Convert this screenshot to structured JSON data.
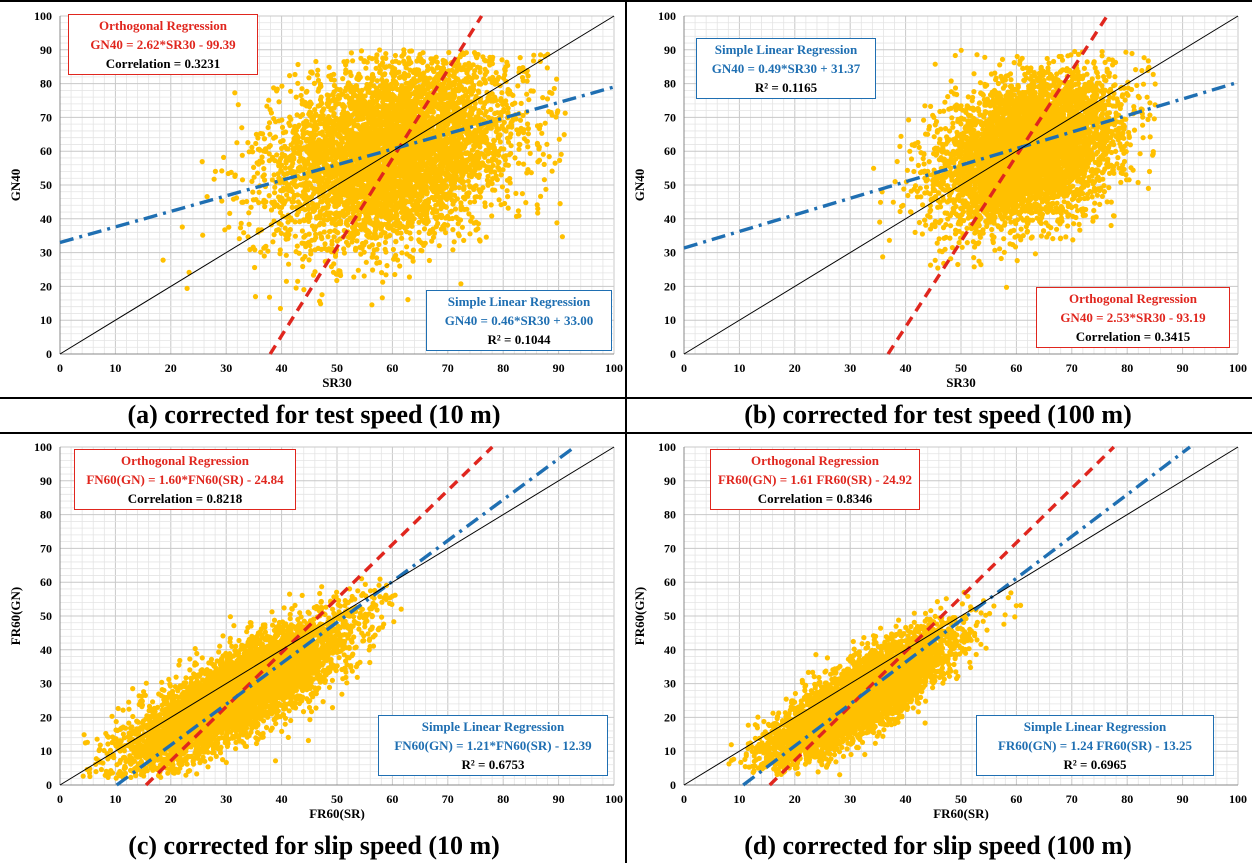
{
  "chart_data": [
    {
      "type": "scatter",
      "panel": "a",
      "caption": "(a) corrected for test speed (10 m)",
      "xlabel": "SR30",
      "ylabel": "GN40",
      "xlim": [
        0,
        100
      ],
      "ylim": [
        0,
        100
      ],
      "xticks": [
        "0",
        "10",
        "20",
        "30",
        "40",
        "50",
        "60",
        "70",
        "80",
        "90",
        "100"
      ],
      "yticks": [
        "0",
        "10",
        "20",
        "30",
        "40",
        "50",
        "60",
        "70",
        "80",
        "90",
        "100"
      ],
      "grid": true,
      "cloud": {
        "cx": 60,
        "cy": 60,
        "sx": 11,
        "sy": 14,
        "rho": 0.3,
        "xmin": 17,
        "xmax": 92,
        "ymin": 12,
        "ymax": 90
      },
      "lines": [
        {
          "name": "Orthogonal Regression",
          "slope": 2.62,
          "intercept": -99.39
        },
        {
          "name": "Simple Linear Regression",
          "slope": 0.46,
          "intercept": 33.0
        },
        {
          "name": "",
          "slope": 1,
          "intercept": 0
        }
      ],
      "ortho_box": {
        "title": "Orthogonal Regression",
        "equation": "GN40 = 2.62*SR30 - 99.39",
        "stat": "Correlation = 0.3231"
      },
      "slr_box": {
        "title": "Simple Linear Regression",
        "equation": "GN40 = 0.46*SR30 + 33.00",
        "stat": "R² = 0.1044"
      }
    },
    {
      "type": "scatter",
      "panel": "b",
      "caption": "(b) corrected for test speed (100 m)",
      "xlabel": "SR30",
      "ylabel": "GN40",
      "xlim": [
        0,
        100
      ],
      "ylim": [
        0,
        100
      ],
      "xticks": [
        "0",
        "10",
        "20",
        "30",
        "40",
        "50",
        "60",
        "70",
        "80",
        "90",
        "100"
      ],
      "yticks": [
        "0",
        "10",
        "20",
        "30",
        "40",
        "50",
        "60",
        "70",
        "80",
        "90",
        "100"
      ],
      "grid": true,
      "cloud": {
        "cx": 62,
        "cy": 60,
        "sx": 8,
        "sy": 11,
        "rho": 0.34,
        "xmin": 25,
        "xmax": 86,
        "ymin": 17,
        "ymax": 90
      },
      "lines": [
        {
          "name": "Orthogonal Regression",
          "slope": 2.53,
          "intercept": -93.19
        },
        {
          "name": "Simple Linear Regression",
          "slope": 0.49,
          "intercept": 31.37
        },
        {
          "name": "",
          "slope": 1,
          "intercept": 0
        }
      ],
      "ortho_box": {
        "title": "Orthogonal Regression",
        "equation": "GN40 = 2.53*SR30 - 93.19",
        "stat": "Correlation = 0.3415"
      },
      "slr_box": {
        "title": "Simple Linear Regression",
        "equation": "GN40 = 0.49*SR30 + 31.37",
        "stat": "R² = 0.1165"
      }
    },
    {
      "type": "scatter",
      "panel": "c",
      "caption": "(c) corrected for slip speed (10 m)",
      "xlabel": "FR60(SR)",
      "ylabel": "FR60(GN)",
      "xlim": [
        0,
        100
      ],
      "ylim": [
        0,
        100
      ],
      "xticks": [
        "0",
        "10",
        "20",
        "30",
        "40",
        "50",
        "60",
        "70",
        "80",
        "90",
        "100"
      ],
      "yticks": [
        "0",
        "10",
        "20",
        "30",
        "40",
        "50",
        "60",
        "70",
        "80",
        "90",
        "100"
      ],
      "grid": true,
      "cloud": {
        "cx": 32,
        "cy": 27,
        "sx": 10,
        "sy": 11,
        "rho": 0.82,
        "xmin": 4,
        "xmax": 63,
        "ymin": 2,
        "ymax": 62
      },
      "lines": [
        {
          "name": "Orthogonal Regression",
          "slope": 1.6,
          "intercept": -24.84
        },
        {
          "name": "Simple Linear Regression",
          "slope": 1.21,
          "intercept": -12.39
        },
        {
          "name": "",
          "slope": 1,
          "intercept": 0
        }
      ],
      "ortho_box": {
        "title": "Orthogonal Regression",
        "equation": "FN60(GN) = 1.60*FN60(SR) - 24.84",
        "stat": "Correlation = 0.8218"
      },
      "slr_box": {
        "title": "Simple Linear Regression",
        "equation": "FN60(GN) = 1.21*FN60(SR) - 12.39",
        "stat": "R² = 0.6753"
      }
    },
    {
      "type": "scatter",
      "panel": "d",
      "caption": "(d) corrected for slip speed (100 m)",
      "xlabel": "FR60(SR)",
      "ylabel": "FR60(GN)",
      "xlim": [
        0,
        100
      ],
      "ylim": [
        0,
        100
      ],
      "xticks": [
        "0",
        "10",
        "20",
        "30",
        "40",
        "50",
        "60",
        "70",
        "80",
        "90",
        "100"
      ],
      "yticks": [
        "0",
        "10",
        "20",
        "30",
        "40",
        "50",
        "60",
        "70",
        "80",
        "90",
        "100"
      ],
      "grid": true,
      "cloud": {
        "cx": 32,
        "cy": 26,
        "sx": 8,
        "sy": 9.5,
        "rho": 0.83,
        "xmin": 8,
        "xmax": 62,
        "ymin": 3,
        "ymax": 59
      },
      "lines": [
        {
          "name": "Orthogonal Regression",
          "slope": 1.61,
          "intercept": -24.92
        },
        {
          "name": "Simple Linear Regression",
          "slope": 1.24,
          "intercept": -13.25
        },
        {
          "name": "",
          "slope": 1,
          "intercept": 0
        }
      ],
      "ortho_box": {
        "title": "Orthogonal Regression",
        "equation": "FR60(GN) = 1.61 FR60(SR) - 24.92",
        "stat": "Correlation = 0.8346"
      },
      "slr_box": {
        "title": "Simple Linear Regression",
        "equation": "FR60(GN) = 1.24 FR60(SR) - 13.25",
        "stat": "R² = 0.6965"
      }
    }
  ],
  "colors": {
    "points": "#ffc000",
    "orthogonal": "#e0261e",
    "simple_linear": "#1f6fb2",
    "identity": "#000000",
    "grid_major": "#c8c8c8",
    "grid_minor": "#e4e4e4"
  }
}
